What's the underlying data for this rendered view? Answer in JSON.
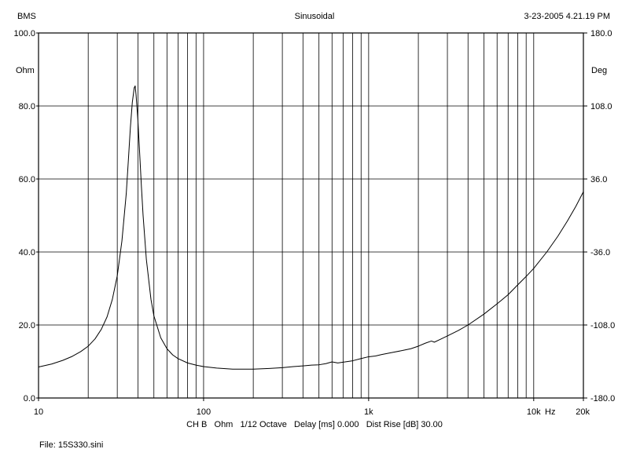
{
  "header": {
    "left": "BMS",
    "center": "Sinusoidal",
    "right": "3-23-2005 4.21.19 PM"
  },
  "footer": {
    "settings": "CH B   Ohm   1/12 Octave   Delay [ms] 0.000   Dist Rise [dB] 30.00",
    "file": "File: 15S330.sini"
  },
  "chart_data": {
    "type": "line",
    "title": "Sinusoidal",
    "x_scale": "log",
    "xlim": [
      10,
      20000
    ],
    "ylim": [
      0,
      100
    ],
    "y2lim": [
      -180,
      180
    ],
    "grid": true,
    "xunit": "Hz",
    "ylabel": "Ohm",
    "y2label": "Deg",
    "x_tick_labels": [
      {
        "value": 10,
        "label": "10"
      },
      {
        "value": 100,
        "label": "100"
      },
      {
        "value": 1000,
        "label": "1k"
      },
      {
        "value": 10000,
        "label": "10k"
      },
      {
        "value": 20000,
        "label": "20k"
      }
    ],
    "y_tick_labels": [
      {
        "value": 0,
        "label": "0.0"
      },
      {
        "value": 20,
        "label": "20.0"
      },
      {
        "value": 40,
        "label": "40.0"
      },
      {
        "value": 60,
        "label": "60.0"
      },
      {
        "value": 80,
        "label": "80.0"
      },
      {
        "value": 100,
        "label": "100.0"
      }
    ],
    "y2_tick_labels": [
      {
        "value": -180,
        "label": "-180.0"
      },
      {
        "value": -108,
        "label": "-108.0"
      },
      {
        "value": -36,
        "label": "-36.0"
      },
      {
        "value": 36,
        "label": "36.0"
      },
      {
        "value": 108,
        "label": "108.0"
      },
      {
        "value": 180,
        "label": "180.0"
      }
    ],
    "series": [
      {
        "color": "#000000",
        "points": [
          [
            10,
            8.5
          ],
          [
            12,
            9.3
          ],
          [
            14,
            10.3
          ],
          [
            16,
            11.4
          ],
          [
            18,
            12.7
          ],
          [
            20,
            14.2
          ],
          [
            22,
            16.2
          ],
          [
            24,
            18.8
          ],
          [
            26,
            22.2
          ],
          [
            28,
            27.0
          ],
          [
            30,
            33.5
          ],
          [
            32,
            43.0
          ],
          [
            34,
            56.0
          ],
          [
            35,
            65.0
          ],
          [
            36,
            74.0
          ],
          [
            37,
            81.0
          ],
          [
            38,
            85.0
          ],
          [
            38.5,
            85.5
          ],
          [
            39,
            83.0
          ],
          [
            40,
            76.0
          ],
          [
            41,
            67.0
          ],
          [
            42,
            58.0
          ],
          [
            43,
            50.0
          ],
          [
            45,
            38.0
          ],
          [
            48,
            27.0
          ],
          [
            50,
            22.5
          ],
          [
            55,
            16.5
          ],
          [
            60,
            13.5
          ],
          [
            65,
            11.8
          ],
          [
            70,
            10.8
          ],
          [
            80,
            9.6
          ],
          [
            90,
            9.0
          ],
          [
            100,
            8.6
          ],
          [
            120,
            8.2
          ],
          [
            150,
            7.9
          ],
          [
            200,
            7.9
          ],
          [
            250,
            8.1
          ],
          [
            300,
            8.3
          ],
          [
            350,
            8.6
          ],
          [
            400,
            8.8
          ],
          [
            450,
            9.0
          ],
          [
            500,
            9.1
          ],
          [
            550,
            9.4
          ],
          [
            600,
            9.9
          ],
          [
            650,
            9.6
          ],
          [
            700,
            9.8
          ],
          [
            800,
            10.2
          ],
          [
            900,
            10.8
          ],
          [
            1000,
            11.3
          ],
          [
            1100,
            11.5
          ],
          [
            1200,
            11.9
          ],
          [
            1400,
            12.5
          ],
          [
            1600,
            13.0
          ],
          [
            1800,
            13.5
          ],
          [
            2000,
            14.2
          ],
          [
            2200,
            15.0
          ],
          [
            2400,
            15.6
          ],
          [
            2500,
            15.3
          ],
          [
            2700,
            16.0
          ],
          [
            3000,
            17.0
          ],
          [
            3500,
            18.5
          ],
          [
            4000,
            20.0
          ],
          [
            5000,
            23.0
          ],
          [
            6000,
            25.8
          ],
          [
            7000,
            28.3
          ],
          [
            8000,
            31.0
          ],
          [
            9000,
            33.3
          ],
          [
            10000,
            35.5
          ],
          [
            12000,
            40.0
          ],
          [
            14000,
            44.3
          ],
          [
            16000,
            48.5
          ],
          [
            18000,
            52.5
          ],
          [
            20000,
            56.5
          ]
        ]
      }
    ]
  }
}
